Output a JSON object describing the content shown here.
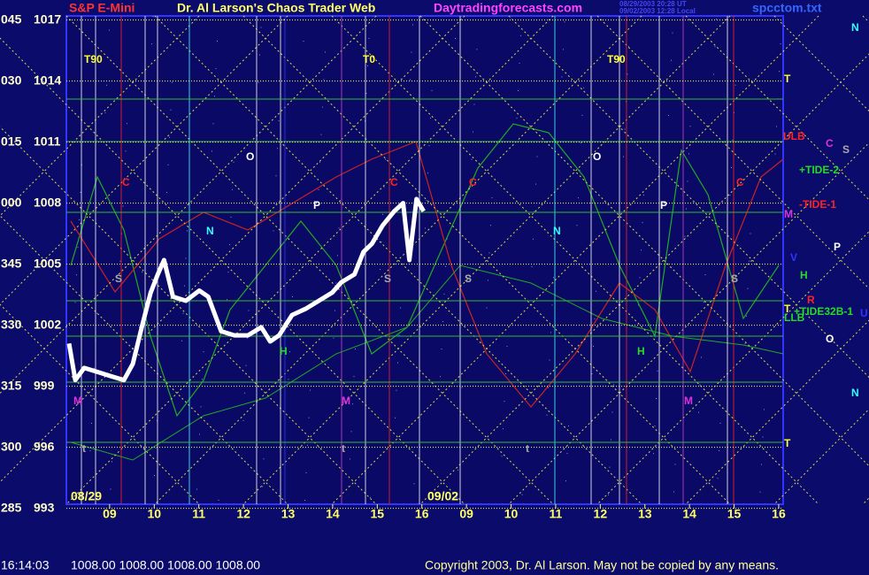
{
  "chart_data": {
    "type": "line",
    "symbol": "S&P E-Mini",
    "title": "Dr. Al Larson's Chaos Trader Web",
    "site": "Daytradingforecasts.com",
    "timestamps": [
      "08/29/2003 20:28 UT",
      "09/02/2003 12:28 Local"
    ],
    "file": "spcctom.txt",
    "dates": [
      "08/29",
      "09/02"
    ],
    "status_time": "16:14:03",
    "quote": "1008.00 1008.00 1008.00 1008.00",
    "copyright": "Copyright 2003, Dr. Al Larson. May not be copied by any means.",
    "angle_labels": [
      "045",
      "030",
      "015",
      "000",
      "345",
      "330",
      "315",
      "300",
      "285"
    ],
    "ylim": [
      993.2,
      1017.2
    ],
    "yticks": [
      1017,
      1014,
      1011,
      1008,
      1005,
      1002,
      999,
      996,
      993
    ],
    "xlim": [
      0.03,
      16.1
    ],
    "xticks": [
      {
        "value": 1,
        "label": "09"
      },
      {
        "value": 2,
        "label": "10"
      },
      {
        "value": 3,
        "label": "11"
      },
      {
        "value": 4,
        "label": "12"
      },
      {
        "value": 5,
        "label": "13"
      },
      {
        "value": 6,
        "label": "14"
      },
      {
        "value": 7,
        "label": "15"
      },
      {
        "value": 8,
        "label": "16"
      },
      {
        "value": 9,
        "label": "09"
      },
      {
        "value": 10,
        "label": "10"
      },
      {
        "value": 11,
        "label": "11"
      },
      {
        "value": 12,
        "label": "12"
      },
      {
        "value": 13,
        "label": "13"
      },
      {
        "value": 14,
        "label": "14"
      },
      {
        "value": 15,
        "label": "15"
      },
      {
        "value": 16,
        "label": "16"
      }
    ],
    "x": [
      0.09,
      0.23,
      0.43,
      0.73,
      1.02,
      1.32,
      1.52,
      1.72,
      1.92,
      2.08,
      2.22,
      2.42,
      2.71,
      3.01,
      3.21,
      3.5,
      3.8,
      4.1,
      4.4,
      4.6,
      4.8,
      5.09,
      5.39,
      5.69,
      5.99,
      6.19,
      6.49,
      6.69,
      6.88,
      7.12,
      7.38,
      7.58,
      7.72,
      7.88,
      8.04
    ],
    "values": [
      1001.1,
      999.3,
      999.9,
      999.7,
      999.5,
      999.3,
      1000.1,
      1001.9,
      1003.6,
      1004.5,
      1005.2,
      1003.4,
      1003.2,
      1003.7,
      1003.4,
      1001.7,
      1001.5,
      1001.5,
      1001.9,
      1001.2,
      1001.5,
      1002.5,
      1002.8,
      1003.2,
      1003.6,
      1004.1,
      1004.5,
      1005.6,
      1006.0,
      1006.9,
      1007.6,
      1008.0,
      1005.2,
      1008.2,
      1007.6
    ],
    "color": "#ffffff",
    "annotations": [
      "T90",
      "T0",
      "T90",
      "O",
      "O",
      "C",
      "C",
      "C",
      "C",
      "P",
      "P",
      "N",
      "N",
      "S",
      "S",
      "S",
      "S",
      "H",
      "H",
      "M",
      "M",
      "M",
      "t",
      "t",
      "t",
      "N",
      "T",
      "ULB",
      "C",
      "S",
      "+TIDE-2",
      "-TIDE-1",
      "M",
      "P",
      "V",
      "H",
      "R",
      "T",
      "+TIDE32B-1",
      "U",
      "LLB",
      "O",
      "N",
      "T"
    ]
  }
}
